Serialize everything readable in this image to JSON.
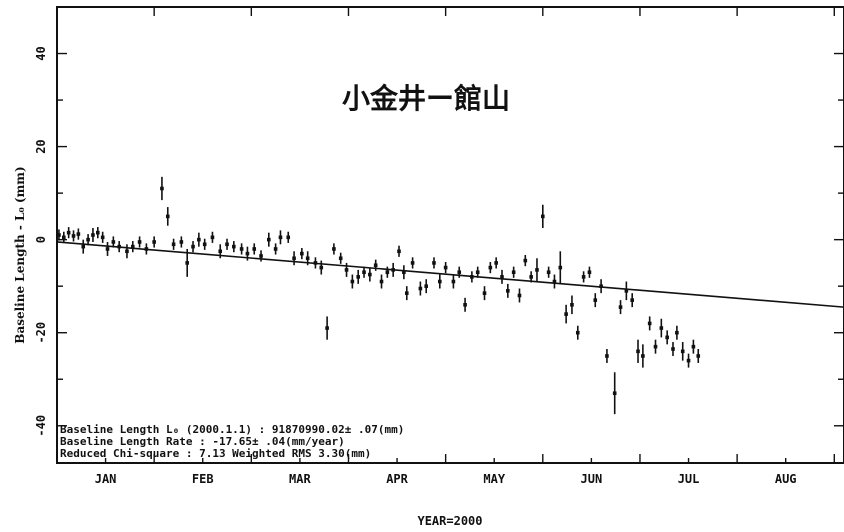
{
  "chart_data": {
    "type": "scatter",
    "title": "小金井ー館山",
    "xlabel": "YEAR=2000",
    "ylabel": "Baseline Length - L₀ (mm)",
    "xlim": [
      0,
      8.1
    ],
    "ylim": [
      -48,
      50
    ],
    "x_tick_labels": [
      "JAN",
      "FEB",
      "MAR",
      "APR",
      "MAY",
      "JUN",
      "JUL",
      "AUG"
    ],
    "y_tick_labels": [
      "-40",
      "-20",
      "0",
      "20",
      "40"
    ],
    "grid": false,
    "annotations": [
      "Baseline Length L₀ (2000.1.1) :    91870990.02±  .07(mm)",
      "Baseline Length Rate : -17.65±  .04(mm/year)",
      "Reduced Chi-square :  7.13  Weighted RMS  3.30(mm)"
    ],
    "fit_line": {
      "x": [
        0.0,
        8.1
      ],
      "y": [
        -0.5,
        -14.5
      ]
    },
    "points": [
      {
        "x": 0.02,
        "y": 1.0,
        "e": 1.2
      },
      {
        "x": 0.07,
        "y": 0.5,
        "e": 1.2
      },
      {
        "x": 0.12,
        "y": 1.5,
        "e": 1.2
      },
      {
        "x": 0.17,
        "y": 0.8,
        "e": 1.2
      },
      {
        "x": 0.22,
        "y": 1.2,
        "e": 1.2
      },
      {
        "x": 0.27,
        "y": -1.5,
        "e": 1.5
      },
      {
        "x": 0.32,
        "y": 0.0,
        "e": 1.2
      },
      {
        "x": 0.37,
        "y": 1.0,
        "e": 1.5
      },
      {
        "x": 0.42,
        "y": 1.5,
        "e": 1.2
      },
      {
        "x": 0.47,
        "y": 0.5,
        "e": 1.2
      },
      {
        "x": 0.52,
        "y": -2.0,
        "e": 1.5
      },
      {
        "x": 0.58,
        "y": -0.5,
        "e": 1.2
      },
      {
        "x": 0.64,
        "y": -1.5,
        "e": 1.2
      },
      {
        "x": 0.72,
        "y": -2.5,
        "e": 1.5
      },
      {
        "x": 0.78,
        "y": -1.5,
        "e": 1.2
      },
      {
        "x": 0.85,
        "y": -0.5,
        "e": 1.2
      },
      {
        "x": 0.92,
        "y": -2.0,
        "e": 1.2
      },
      {
        "x": 1.0,
        "y": -0.5,
        "e": 1.2
      },
      {
        "x": 1.08,
        "y": 11.0,
        "e": 2.5
      },
      {
        "x": 1.14,
        "y": 5.0,
        "e": 2.0
      },
      {
        "x": 1.2,
        "y": -1.0,
        "e": 1.2
      },
      {
        "x": 1.28,
        "y": -0.5,
        "e": 1.2
      },
      {
        "x": 1.34,
        "y": -5.0,
        "e": 3.0
      },
      {
        "x": 1.4,
        "y": -1.5,
        "e": 1.2
      },
      {
        "x": 1.46,
        "y": 0.0,
        "e": 1.5
      },
      {
        "x": 1.52,
        "y": -1.0,
        "e": 1.2
      },
      {
        "x": 1.6,
        "y": 0.5,
        "e": 1.2
      },
      {
        "x": 1.68,
        "y": -2.5,
        "e": 1.5
      },
      {
        "x": 1.75,
        "y": -1.0,
        "e": 1.2
      },
      {
        "x": 1.82,
        "y": -1.5,
        "e": 1.2
      },
      {
        "x": 1.9,
        "y": -2.0,
        "e": 1.2
      },
      {
        "x": 1.96,
        "y": -3.0,
        "e": 1.5
      },
      {
        "x": 2.03,
        "y": -2.0,
        "e": 1.2
      },
      {
        "x": 2.1,
        "y": -3.5,
        "e": 1.2
      },
      {
        "x": 2.18,
        "y": 0.0,
        "e": 1.5
      },
      {
        "x": 2.25,
        "y": -2.0,
        "e": 1.2
      },
      {
        "x": 2.3,
        "y": 0.5,
        "e": 1.5
      },
      {
        "x": 2.38,
        "y": 0.5,
        "e": 1.2
      },
      {
        "x": 2.44,
        "y": -4.0,
        "e": 1.5
      },
      {
        "x": 2.52,
        "y": -3.0,
        "e": 1.2
      },
      {
        "x": 2.58,
        "y": -4.0,
        "e": 1.5
      },
      {
        "x": 2.66,
        "y": -5.0,
        "e": 1.2
      },
      {
        "x": 2.72,
        "y": -6.0,
        "e": 1.5
      },
      {
        "x": 2.78,
        "y": -19.0,
        "e": 2.5
      },
      {
        "x": 2.85,
        "y": -2.0,
        "e": 1.2
      },
      {
        "x": 2.92,
        "y": -4.0,
        "e": 1.2
      },
      {
        "x": 2.98,
        "y": -6.5,
        "e": 1.5
      },
      {
        "x": 3.04,
        "y": -9.0,
        "e": 1.5
      },
      {
        "x": 3.1,
        "y": -8.0,
        "e": 1.5
      },
      {
        "x": 3.16,
        "y": -7.0,
        "e": 1.2
      },
      {
        "x": 3.22,
        "y": -7.5,
        "e": 1.5
      },
      {
        "x": 3.28,
        "y": -5.5,
        "e": 1.2
      },
      {
        "x": 3.34,
        "y": -9.0,
        "e": 1.5
      },
      {
        "x": 3.4,
        "y": -7.0,
        "e": 1.2
      },
      {
        "x": 3.46,
        "y": -6.5,
        "e": 1.5
      },
      {
        "x": 3.52,
        "y": -2.5,
        "e": 1.2
      },
      {
        "x": 3.57,
        "y": -7.0,
        "e": 1.5
      },
      {
        "x": 3.6,
        "y": -11.5,
        "e": 1.5
      },
      {
        "x": 3.66,
        "y": -5.0,
        "e": 1.2
      },
      {
        "x": 3.74,
        "y": -10.5,
        "e": 1.5
      },
      {
        "x": 3.8,
        "y": -10.0,
        "e": 1.5
      },
      {
        "x": 3.88,
        "y": -5.0,
        "e": 1.2
      },
      {
        "x": 3.94,
        "y": -9.0,
        "e": 1.5
      },
      {
        "x": 4.0,
        "y": -6.0,
        "e": 1.2
      },
      {
        "x": 4.08,
        "y": -9.0,
        "e": 1.5
      },
      {
        "x": 4.14,
        "y": -7.0,
        "e": 1.2
      },
      {
        "x": 4.2,
        "y": -14.0,
        "e": 1.5
      },
      {
        "x": 4.27,
        "y": -8.0,
        "e": 1.2
      },
      {
        "x": 4.33,
        "y": -7.0,
        "e": 1.2
      },
      {
        "x": 4.4,
        "y": -11.5,
        "e": 1.5
      },
      {
        "x": 4.46,
        "y": -6.0,
        "e": 1.2
      },
      {
        "x": 4.52,
        "y": -5.0,
        "e": 1.2
      },
      {
        "x": 4.58,
        "y": -8.0,
        "e": 1.5
      },
      {
        "x": 4.64,
        "y": -11.0,
        "e": 1.5
      },
      {
        "x": 4.7,
        "y": -7.0,
        "e": 1.2
      },
      {
        "x": 4.76,
        "y": -12.0,
        "e": 1.5
      },
      {
        "x": 4.82,
        "y": -4.5,
        "e": 1.2
      },
      {
        "x": 4.88,
        "y": -8.0,
        "e": 1.2
      },
      {
        "x": 4.94,
        "y": -6.5,
        "e": 2.5
      },
      {
        "x": 5.0,
        "y": 5.0,
        "e": 2.5
      },
      {
        "x": 5.06,
        "y": -7.0,
        "e": 1.2
      },
      {
        "x": 5.12,
        "y": -9.0,
        "e": 1.5
      },
      {
        "x": 5.18,
        "y": -6.0,
        "e": 3.5
      },
      {
        "x": 5.24,
        "y": -16.0,
        "e": 2.0
      },
      {
        "x": 5.3,
        "y": -14.0,
        "e": 2.0
      },
      {
        "x": 5.36,
        "y": -20.0,
        "e": 1.5
      },
      {
        "x": 5.42,
        "y": -8.0,
        "e": 1.2
      },
      {
        "x": 5.48,
        "y": -7.0,
        "e": 1.2
      },
      {
        "x": 5.54,
        "y": -13.0,
        "e": 1.5
      },
      {
        "x": 5.6,
        "y": -10.0,
        "e": 1.5
      },
      {
        "x": 5.66,
        "y": -25.0,
        "e": 1.5
      },
      {
        "x": 5.74,
        "y": -33.0,
        "e": 4.5
      },
      {
        "x": 5.8,
        "y": -14.5,
        "e": 1.5
      },
      {
        "x": 5.86,
        "y": -11.0,
        "e": 2.0
      },
      {
        "x": 5.92,
        "y": -13.0,
        "e": 1.5
      },
      {
        "x": 5.98,
        "y": -24.0,
        "e": 2.5
      },
      {
        "x": 6.03,
        "y": -25.0,
        "e": 2.5
      },
      {
        "x": 6.1,
        "y": -18.0,
        "e": 1.5
      },
      {
        "x": 6.16,
        "y": -23.0,
        "e": 1.5
      },
      {
        "x": 6.22,
        "y": -19.0,
        "e": 2.0
      },
      {
        "x": 6.28,
        "y": -21.0,
        "e": 1.5
      },
      {
        "x": 6.34,
        "y": -23.5,
        "e": 1.5
      },
      {
        "x": 6.38,
        "y": -20.0,
        "e": 1.5
      },
      {
        "x": 6.44,
        "y": -24.0,
        "e": 2.0
      },
      {
        "x": 6.5,
        "y": -26.0,
        "e": 1.5
      },
      {
        "x": 6.55,
        "y": -23.0,
        "e": 1.5
      },
      {
        "x": 6.6,
        "y": -25.0,
        "e": 1.5
      }
    ]
  }
}
